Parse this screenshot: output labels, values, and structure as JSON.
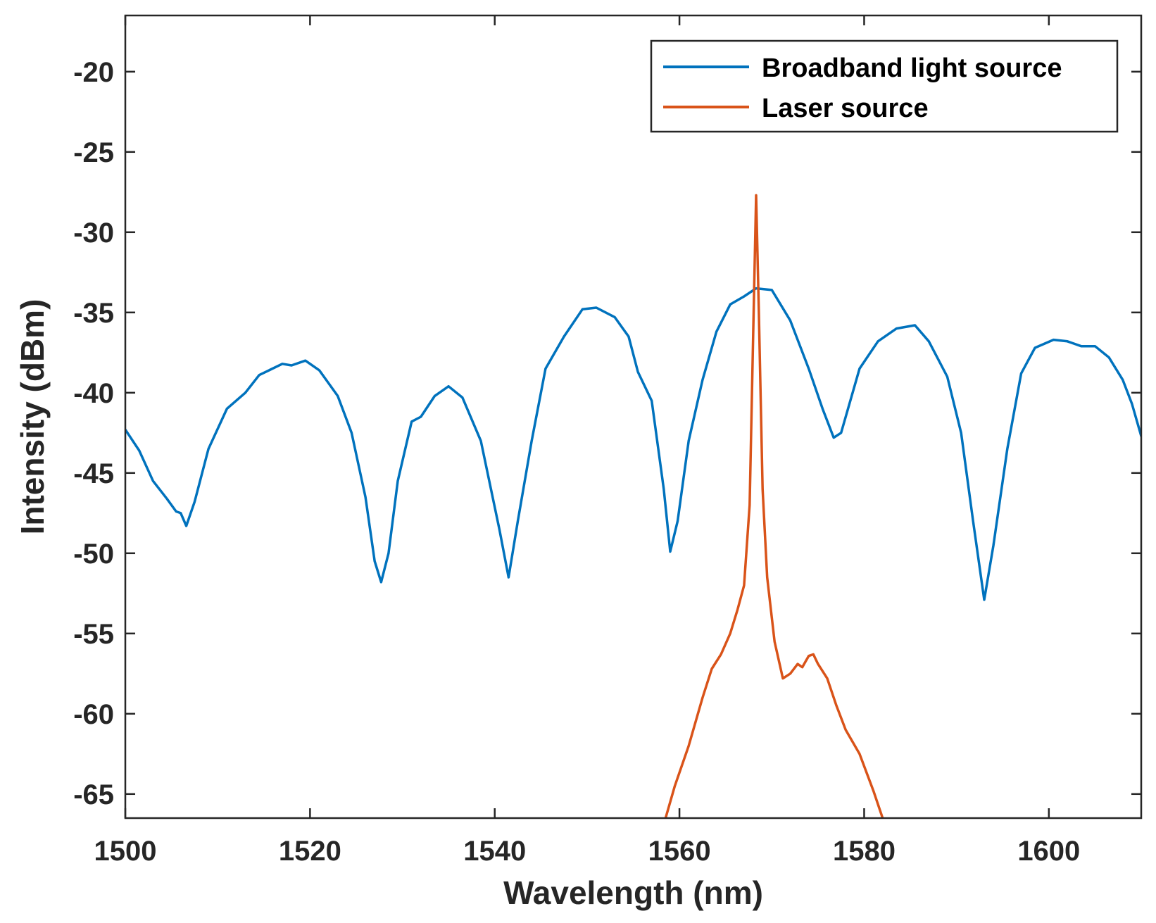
{
  "chart_data": {
    "type": "line",
    "title": "",
    "xlabel": "Wavelength (nm)",
    "ylabel": "Intensity (dBm)",
    "xlim": [
      1500,
      1610
    ],
    "ylim": [
      -66.5,
      -16.5
    ],
    "xticks": [
      1500,
      1520,
      1540,
      1560,
      1580,
      1600
    ],
    "yticks": [
      -20,
      -25,
      -30,
      -35,
      -40,
      -45,
      -50,
      -55,
      -60,
      -65
    ],
    "grid": false,
    "legend_position": "top-right",
    "series": [
      {
        "name": "Broadband light source",
        "color": "#0072BD",
        "points": [
          [
            1500,
            -42.3
          ],
          [
            1501.5,
            -43.6
          ],
          [
            1503,
            -45.5
          ],
          [
            1504.5,
            -46.6
          ],
          [
            1505.5,
            -47.4
          ],
          [
            1506,
            -47.5
          ],
          [
            1506.6,
            -48.3
          ],
          [
            1507.5,
            -46.8
          ],
          [
            1509,
            -43.5
          ],
          [
            1511,
            -41.0
          ],
          [
            1513,
            -40.0
          ],
          [
            1514.5,
            -38.9
          ],
          [
            1517,
            -38.2
          ],
          [
            1518,
            -38.3
          ],
          [
            1519.5,
            -38.0
          ],
          [
            1521,
            -38.6
          ],
          [
            1523,
            -40.2
          ],
          [
            1524.5,
            -42.5
          ],
          [
            1526,
            -46.5
          ],
          [
            1527,
            -50.5
          ],
          [
            1527.7,
            -51.8
          ],
          [
            1528.5,
            -50.0
          ],
          [
            1529.5,
            -45.5
          ],
          [
            1531,
            -41.8
          ],
          [
            1532,
            -41.5
          ],
          [
            1533.5,
            -40.2
          ],
          [
            1535,
            -39.6
          ],
          [
            1536.5,
            -40.3
          ],
          [
            1538.5,
            -43.0
          ],
          [
            1540.5,
            -48.5
          ],
          [
            1541.5,
            -51.5
          ],
          [
            1542.5,
            -48.0
          ],
          [
            1544,
            -43.0
          ],
          [
            1545.5,
            -38.5
          ],
          [
            1547.5,
            -36.5
          ],
          [
            1549.5,
            -34.8
          ],
          [
            1551,
            -34.7
          ],
          [
            1553,
            -35.3
          ],
          [
            1554.5,
            -36.5
          ],
          [
            1555.5,
            -38.7
          ],
          [
            1557,
            -40.5
          ],
          [
            1558.3,
            -46.0
          ],
          [
            1559,
            -49.9
          ],
          [
            1559.8,
            -48.0
          ],
          [
            1561,
            -43.0
          ],
          [
            1562.5,
            -39.2
          ],
          [
            1564,
            -36.2
          ],
          [
            1565.5,
            -34.5
          ],
          [
            1567,
            -34.0
          ],
          [
            1568.3,
            -33.5
          ],
          [
            1570,
            -33.6
          ],
          [
            1572,
            -35.5
          ],
          [
            1574,
            -38.5
          ],
          [
            1575.5,
            -41.0
          ],
          [
            1576.7,
            -42.8
          ],
          [
            1577.5,
            -42.5
          ],
          [
            1579.5,
            -38.5
          ],
          [
            1581.5,
            -36.8
          ],
          [
            1583.5,
            -36.0
          ],
          [
            1585.5,
            -35.8
          ],
          [
            1587,
            -36.8
          ],
          [
            1589,
            -39.0
          ],
          [
            1590.5,
            -42.5
          ],
          [
            1591.8,
            -48.0
          ],
          [
            1593,
            -52.9
          ],
          [
            1594,
            -49.5
          ],
          [
            1595.5,
            -43.5
          ],
          [
            1597,
            -38.8
          ],
          [
            1598.5,
            -37.2
          ],
          [
            1600.5,
            -36.7
          ],
          [
            1602,
            -36.8
          ],
          [
            1603.5,
            -37.1
          ],
          [
            1605,
            -37.1
          ],
          [
            1606.5,
            -37.8
          ],
          [
            1608,
            -39.2
          ],
          [
            1609,
            -40.7
          ],
          [
            1610,
            -42.7
          ]
        ]
      },
      {
        "name": "Laser source",
        "color": "#D95319",
        "points": [
          [
            1558.5,
            -66.5
          ],
          [
            1559.5,
            -64.5
          ],
          [
            1561,
            -62.0
          ],
          [
            1562.5,
            -59.0
          ],
          [
            1563.5,
            -57.2
          ],
          [
            1564.5,
            -56.3
          ],
          [
            1565.5,
            -55.0
          ],
          [
            1566.3,
            -53.5
          ],
          [
            1567,
            -52.0
          ],
          [
            1567.6,
            -47.0
          ],
          [
            1568,
            -36.0
          ],
          [
            1568.3,
            -27.7
          ],
          [
            1568.6,
            -35.0
          ],
          [
            1569,
            -46.0
          ],
          [
            1569.5,
            -51.5
          ],
          [
            1570.3,
            -55.5
          ],
          [
            1571.2,
            -57.8
          ],
          [
            1572,
            -57.5
          ],
          [
            1572.8,
            -56.9
          ],
          [
            1573.3,
            -57.1
          ],
          [
            1574,
            -56.4
          ],
          [
            1574.5,
            -56.3
          ],
          [
            1575,
            -56.9
          ],
          [
            1576,
            -57.8
          ],
          [
            1577,
            -59.5
          ],
          [
            1578,
            -61.0
          ],
          [
            1579.5,
            -62.5
          ],
          [
            1581,
            -64.8
          ],
          [
            1582,
            -66.5
          ]
        ]
      }
    ]
  }
}
